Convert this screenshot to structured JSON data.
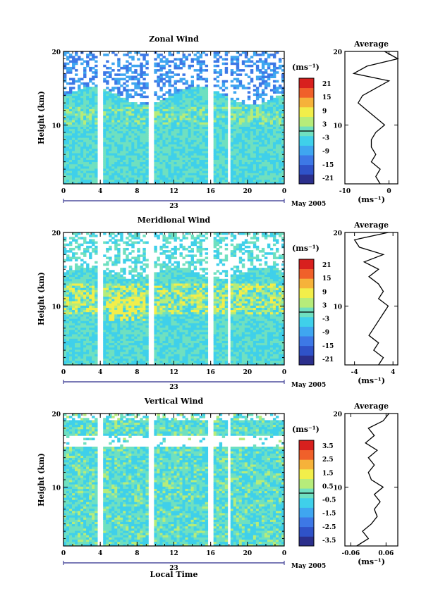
{
  "figure": {
    "x_axis_title": "Local Time",
    "date_label": "May 2005",
    "day_label": "23",
    "x_ticks": [
      "0",
      "4",
      "8",
      "12",
      "16",
      "20",
      "0"
    ],
    "y_label": "Height (km)",
    "y_ticks": [
      "10",
      "20"
    ],
    "unit_label": "(ms⁻¹)",
    "profile_title": "Average",
    "profile_unit": "(ms⁻¹)"
  },
  "colors": {
    "colormap": [
      "#2b2f8c",
      "#2f52c8",
      "#3d78e6",
      "#3fa6f0",
      "#3fd0ea",
      "#6fe0c0",
      "#b6ec7a",
      "#f2ee4a",
      "#f6b23a",
      "#f0602a",
      "#d8201e"
    ]
  },
  "chart_data": [
    {
      "type": "heatmap",
      "title": "Zonal Wind",
      "xlabel": "Local Time",
      "ylabel": "Height (km)",
      "xlim": [
        0,
        24
      ],
      "ylim": [
        2,
        20
      ],
      "colorbar": {
        "ticks": [
          "21",
          "15",
          "9",
          "3",
          "-3",
          "-9",
          "-15",
          "-21"
        ],
        "range": [
          -24,
          24
        ],
        "unit": "(ms⁻¹)"
      },
      "profile": {
        "title": "Average",
        "xlim": [
          -10,
          2
        ],
        "xticks": [
          "-10",
          "0"
        ],
        "heights": [
          2,
          3,
          4,
          5,
          6,
          7,
          8,
          9,
          10,
          11,
          12,
          13,
          14,
          15,
          16,
          17,
          18,
          19,
          20
        ],
        "values": [
          -2,
          -3,
          -2,
          -4,
          -3,
          -4,
          -4,
          -3,
          -1,
          -3,
          -5,
          -7,
          -6,
          -3,
          0,
          -8,
          -5,
          2,
          -1
        ]
      }
    },
    {
      "type": "heatmap",
      "title": "Meridional Wind",
      "xlabel": "Local Time",
      "ylabel": "Height (km)",
      "xlim": [
        0,
        24
      ],
      "ylim": [
        2,
        20
      ],
      "colorbar": {
        "ticks": [
          "21",
          "15",
          "9",
          "3",
          "-3",
          "-9",
          "-15",
          "-21"
        ],
        "range": [
          -24,
          24
        ],
        "unit": "(ms⁻¹)"
      },
      "profile": {
        "title": "Average",
        "xlim": [
          -6,
          5
        ],
        "xticks": [
          "-4",
          "4"
        ],
        "heights": [
          2,
          3,
          4,
          5,
          6,
          7,
          8,
          9,
          10,
          11,
          12,
          13,
          14,
          15,
          16,
          17,
          18,
          19,
          20
        ],
        "values": [
          1,
          2,
          0,
          1,
          -1,
          0,
          1,
          2,
          3,
          1,
          2,
          1,
          -1,
          1,
          -2,
          2,
          -3,
          -4,
          3
        ]
      }
    },
    {
      "type": "heatmap",
      "title": "Vertical Wind",
      "xlabel": "Local Time",
      "ylabel": "Height (km)",
      "xlim": [
        0,
        24
      ],
      "ylim": [
        2,
        20
      ],
      "colorbar": {
        "ticks": [
          "3.5",
          "2.5",
          "1.5",
          "0.5",
          "-0.5",
          "-1.5",
          "-2.5",
          "-3.5"
        ],
        "range": [
          -4,
          4
        ],
        "unit": "(ms⁻¹)"
      },
      "profile": {
        "title": "Average",
        "xlim": [
          -0.08,
          0.1
        ],
        "xticks": [
          "-0.06",
          "0.06"
        ],
        "heights": [
          2,
          3,
          4,
          5,
          6,
          7,
          8,
          9,
          10,
          11,
          12,
          13,
          14,
          15,
          16,
          17,
          18,
          19,
          20
        ],
        "values": [
          -0.04,
          0.0,
          -0.02,
          0.01,
          0.03,
          0.02,
          0.04,
          0.02,
          0.05,
          0.01,
          0.0,
          0.02,
          0.0,
          0.03,
          -0.01,
          0.02,
          0.0,
          0.05,
          0.07
        ]
      }
    }
  ]
}
